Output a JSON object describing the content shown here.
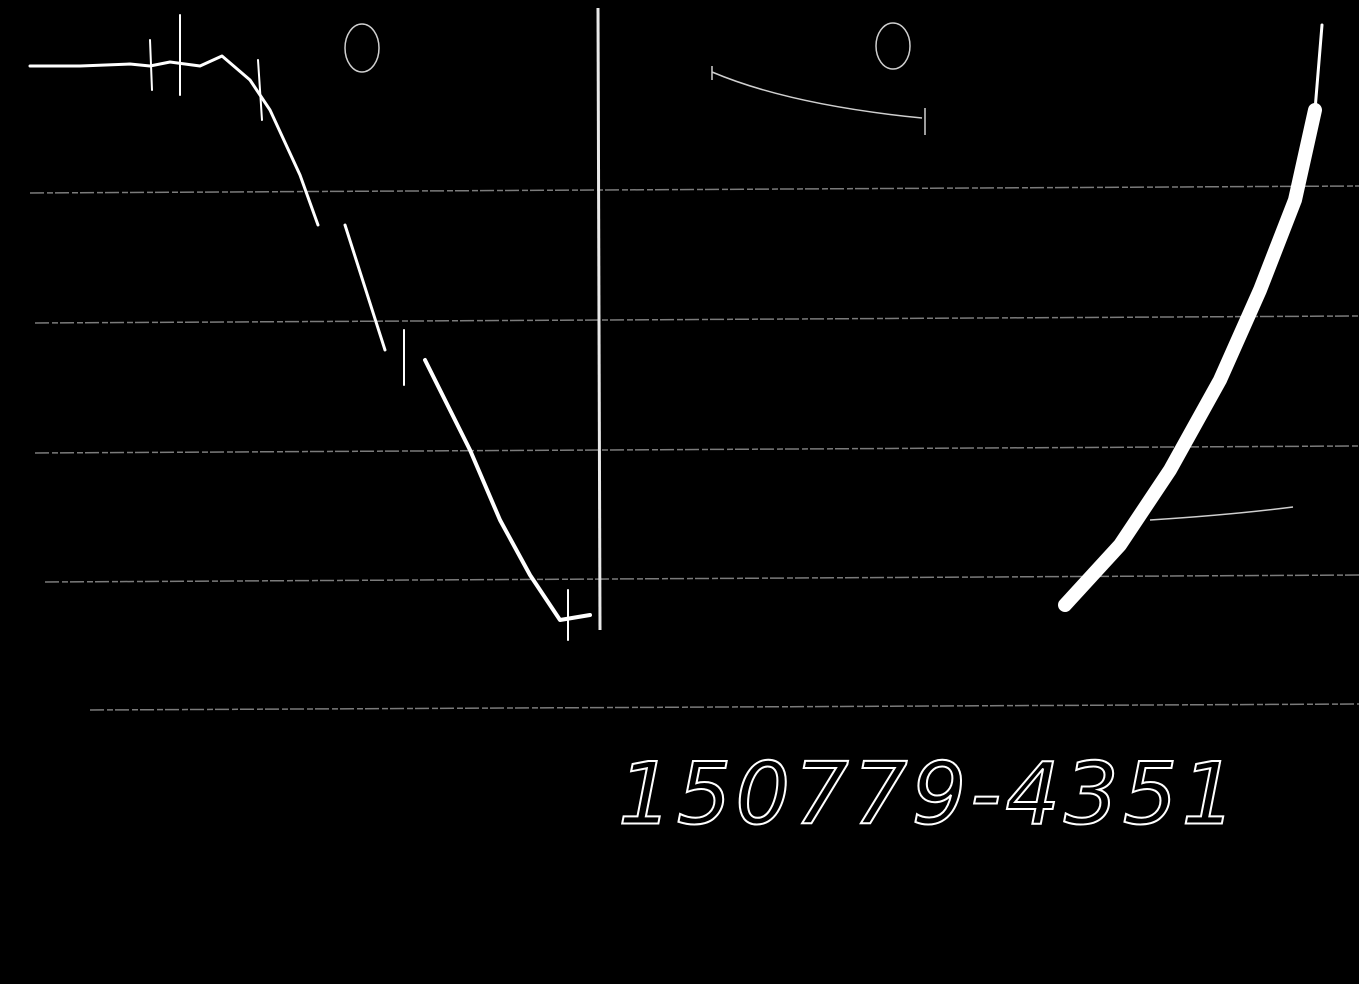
{
  "label": "150779-4351"
}
